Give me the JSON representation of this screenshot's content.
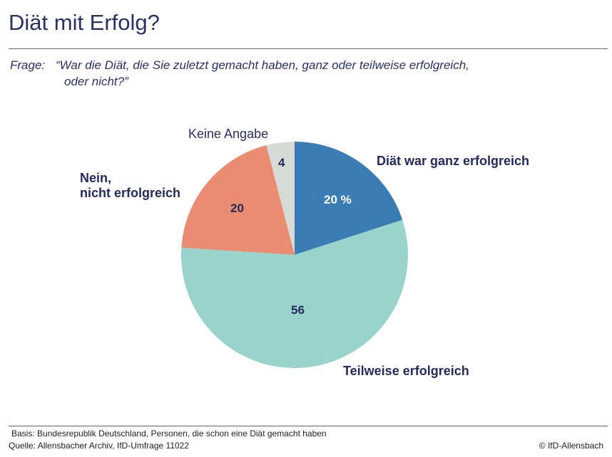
{
  "title": "Diät mit Erfolg?",
  "question": {
    "prefix": "Frage:",
    "line1": "“War die Diät, die Sie zuletzt gemacht haben, ganz oder teilweise erfolgreich,",
    "line2": "oder nicht?”"
  },
  "chart_data": {
    "type": "pie",
    "start": "12 o'clock, clockwise",
    "slices": [
      {
        "name": "Diät war ganz erfolgreich",
        "value": 20,
        "value_label": "20 %",
        "color": "#3a7db4"
      },
      {
        "name": "Teilweise erfolgreich",
        "value": 56,
        "value_label": "56",
        "color": "#98d3cc"
      },
      {
        "name_line1": "Nein,",
        "name_line2": "nicht erfolgreich",
        "value": 20,
        "value_label": "20",
        "color": "#ea8c72"
      },
      {
        "name": "Keine Angabe",
        "value": 4,
        "value_label": "4",
        "color": "#d8dbd5"
      }
    ]
  },
  "footer": {
    "basis": "Basis: Bundesrepublik Deutschland, Personen, die schon eine Diät gemacht haben",
    "source": "Quelle: Allensbacher Archiv, IfD-Umfrage 11022",
    "copyright": "© IfD-Allensbach"
  }
}
